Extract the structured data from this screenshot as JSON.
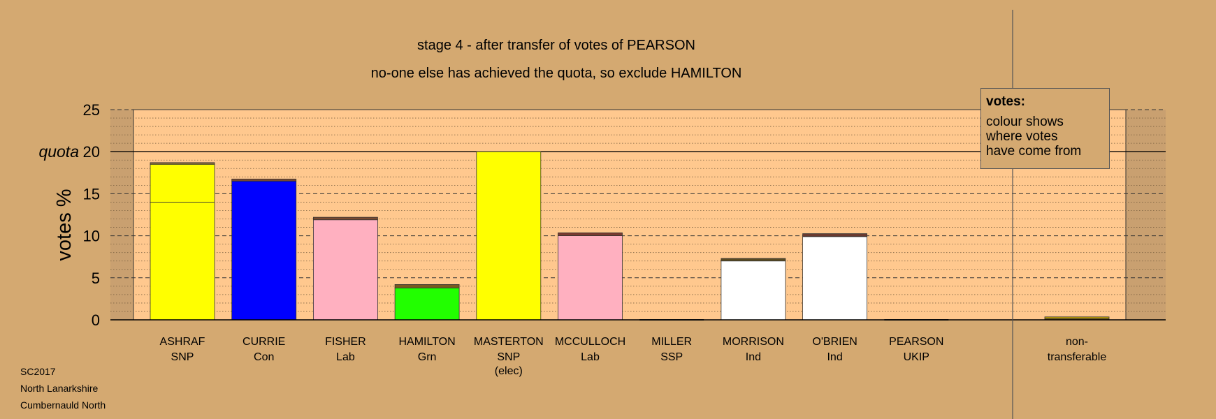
{
  "footer": {
    "lines": [
      "SC2017",
      "North Lanarkshire",
      "Cumbernauld North"
    ]
  },
  "legend": {
    "title": "votes:",
    "lines": [
      "colour shows",
      "where votes",
      "have come from"
    ]
  },
  "chart_data": {
    "type": "bar",
    "title": "stage 4 - after transfer of votes of PEARSON",
    "subtitle": "no-one else has achieved the quota, so exclude HAMILTON",
    "ylabel": "votes %",
    "quota_label": "quota",
    "quota": 20,
    "ylim": [
      0,
      25
    ],
    "yticks": [
      0,
      5,
      10,
      15,
      20,
      25
    ],
    "grid": "dashed major every 5, dotted minor every 1",
    "colors": {
      "SNP": "#ffff00",
      "Con": "#0000ff",
      "Lab": "#ffb0c0",
      "Grn": "#22ff00",
      "Ind": "#ffffff",
      "SSP": "#ff4040",
      "UKIP": "#9c1e88",
      "plot_bg": "#ffc88e",
      "page_bg": "#d4a971"
    },
    "bars": [
      {
        "name": "ASHRAF",
        "party": "SNP",
        "note": "",
        "segments": [
          {
            "from": "ASHRAF",
            "value": 14.0,
            "color": "#ffff00"
          },
          {
            "from": "MASTERTON",
            "value": 4.5,
            "color": "#ffff00"
          },
          {
            "from": "others",
            "value": 0.2,
            "color": "#8a6a3a"
          }
        ]
      },
      {
        "name": "CURRIE",
        "party": "Con",
        "note": "",
        "segments": [
          {
            "from": "CURRIE",
            "value": 16.5,
            "color": "#0000ff"
          },
          {
            "from": "others",
            "value": 0.25,
            "color": "#7a4a30"
          }
        ]
      },
      {
        "name": "FISHER",
        "party": "Lab",
        "note": "",
        "segments": [
          {
            "from": "FISHER",
            "value": 11.9,
            "color": "#ffb0c0"
          },
          {
            "from": "others",
            "value": 0.3,
            "color": "#7a4a30"
          }
        ]
      },
      {
        "name": "HAMILTON",
        "party": "Grn",
        "note": "",
        "segments": [
          {
            "from": "HAMILTON",
            "value": 3.8,
            "color": "#22ff00"
          },
          {
            "from": "others",
            "value": 0.4,
            "color": "#7a5a20"
          }
        ]
      },
      {
        "name": "MASTERTON",
        "party": "SNP",
        "note": "(elec)",
        "segments": [
          {
            "from": "MASTERTON",
            "value": 20.0,
            "color": "#ffff00"
          }
        ]
      },
      {
        "name": "MCCULLOCH",
        "party": "Lab",
        "note": "",
        "segments": [
          {
            "from": "MCCULLOCH",
            "value": 10.0,
            "color": "#ffb0c0"
          },
          {
            "from": "others",
            "value": 0.35,
            "color": "#7a3a30"
          }
        ]
      },
      {
        "name": "MILLER",
        "party": "SSP",
        "note": "",
        "segments": [
          {
            "from": "MILLER",
            "value": 0.0,
            "color": "#ff4040"
          }
        ]
      },
      {
        "name": "MORRISON",
        "party": "Ind",
        "note": "",
        "segments": [
          {
            "from": "MORRISON",
            "value": 7.0,
            "color": "#ffffff"
          },
          {
            "from": "others",
            "value": 0.3,
            "color": "#5a4a20"
          }
        ]
      },
      {
        "name": "O'BRIEN",
        "party": "Ind",
        "note": "",
        "segments": [
          {
            "from": "O'BRIEN",
            "value": 9.9,
            "color": "#ffffff"
          },
          {
            "from": "others",
            "value": 0.35,
            "color": "#6a3a30"
          }
        ]
      },
      {
        "name": "PEARSON",
        "party": "UKIP",
        "note": "",
        "segments": [
          {
            "from": "PEARSON",
            "value": 0.0,
            "color": "#9c1e88"
          }
        ]
      }
    ],
    "nontransferable": {
      "label": [
        "non-",
        "transferable"
      ],
      "segments": [
        {
          "from": "various",
          "value": 0.15,
          "color": "#7a5a20"
        },
        {
          "from": "various",
          "value": 0.2,
          "color": "#c0a000"
        }
      ]
    }
  }
}
